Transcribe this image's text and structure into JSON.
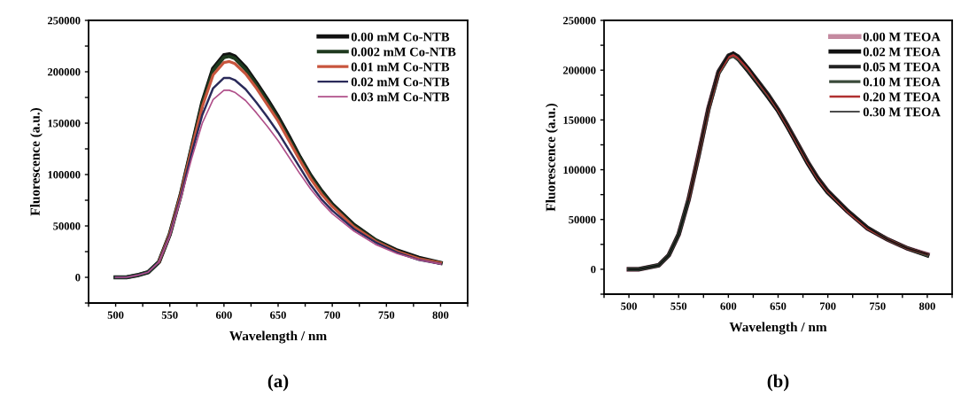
{
  "chart_data": [
    {
      "type": "line",
      "xlabel": "Wavelength / nm",
      "ylabel": "Fluorescence (a.u.)",
      "annotations": [
        "(a)"
      ],
      "x": [
        500,
        510,
        520,
        530,
        540,
        550,
        560,
        570,
        580,
        590,
        600,
        605,
        610,
        620,
        630,
        640,
        650,
        660,
        670,
        680,
        690,
        700,
        720,
        740,
        760,
        780,
        800
      ],
      "series": [
        {
          "name": "0.00 mM Co-NTB",
          "color": "#111111",
          "values": [
            0,
            0,
            2000,
            5000,
            15000,
            42000,
            80000,
            125000,
            170000,
            203000,
            216000,
            217000,
            215000,
            204000,
            189000,
            173000,
            156000,
            137000,
            117000,
            99000,
            84000,
            71000,
            51000,
            36000,
            26000,
            19000,
            14000
          ]
        },
        {
          "name": "0.002 mM Co-NTB",
          "color": "#1f3a1f",
          "values": [
            0,
            0,
            2000,
            5000,
            15000,
            42000,
            80000,
            125000,
            169000,
            201000,
            214000,
            215000,
            213000,
            202000,
            187000,
            171000,
            154000,
            135000,
            116000,
            98000,
            83000,
            70000,
            50000,
            36000,
            25000,
            18000,
            14000
          ]
        },
        {
          "name": "0.01 mM Co-NTB",
          "color": "#c8553d",
          "values": [
            null,
            null,
            null,
            null,
            15000,
            42000,
            80000,
            124000,
            166000,
            197000,
            209000,
            210000,
            208000,
            198000,
            184000,
            168000,
            152000,
            133000,
            114000,
            96000,
            81000,
            69000,
            49000,
            35000,
            25000,
            18000,
            14000
          ]
        },
        {
          "name": "0.02 mM Co-NTB",
          "color": "#2a2a5a",
          "values": [
            0,
            0,
            2000,
            5000,
            15000,
            41000,
            78000,
            120000,
            158000,
            184000,
            194000,
            194000,
            192000,
            183000,
            170000,
            156000,
            141000,
            124000,
            107000,
            90000,
            76000,
            65000,
            47000,
            34000,
            24000,
            17000,
            13000
          ]
        },
        {
          "name": "0.03 mM Co-NTB",
          "color": "#b0508a",
          "values": [
            0,
            0,
            2000,
            5000,
            15000,
            40000,
            76000,
            115000,
            150000,
            173000,
            182000,
            182000,
            180000,
            172000,
            160000,
            147000,
            133000,
            117000,
            101000,
            86000,
            73000,
            62000,
            45000,
            32000,
            23000,
            17000,
            13000
          ]
        }
      ],
      "xlim": [
        475,
        825
      ],
      "ylim": [
        -25000,
        250000
      ],
      "xticks": [
        {
          "value": 475,
          "label": null
        },
        500,
        {
          "value": 525,
          "label": null
        },
        550,
        {
          "value": 575,
          "label": null
        },
        600,
        {
          "value": 625,
          "label": null
        },
        650,
        {
          "value": 675,
          "label": null
        },
        700,
        {
          "value": 725,
          "label": null
        },
        750,
        {
          "value": 775,
          "label": null
        },
        800,
        {
          "value": 825,
          "label": null
        }
      ],
      "yticks": [
        {
          "value": -25000,
          "label": null
        },
        0,
        {
          "value": 25000,
          "label": null
        },
        50000,
        {
          "value": 75000,
          "label": null
        },
        100000,
        {
          "value": 125000,
          "label": null
        },
        150000,
        {
          "value": 175000,
          "label": null
        },
        200000,
        {
          "value": 225000,
          "label": null
        },
        250000
      ],
      "legend": "top right",
      "grid": false,
      "line_style": "solid",
      "marker": "none"
    },
    {
      "type": "line",
      "xlabel": "Wavelength / nm",
      "ylabel": "Fluorescence (a.u.)",
      "annotations": [
        "(b)"
      ],
      "x": [
        500,
        510,
        520,
        530,
        540,
        550,
        560,
        570,
        580,
        590,
        600,
        605,
        610,
        620,
        630,
        640,
        650,
        660,
        670,
        680,
        690,
        700,
        720,
        740,
        760,
        780,
        800
      ],
      "series": [
        {
          "name": "0.00 M TEOA",
          "color": "#c48aa0",
          "values": [
            0,
            0,
            2000,
            4000,
            14000,
            35000,
            70000,
            115000,
            162000,
            198000,
            214000,
            216000,
            212000,
            200000,
            187000,
            174000,
            160000,
            143000,
            125000,
            107000,
            91000,
            78000,
            58000,
            41000,
            30000,
            21000,
            15000
          ]
        },
        {
          "name": "0.02 M TEOA",
          "color": "#111111",
          "values": [
            0,
            0,
            2000,
            4000,
            14000,
            35000,
            70000,
            114000,
            161000,
            197000,
            213000,
            215000,
            211000,
            199000,
            186000,
            173000,
            159000,
            142000,
            124000,
            106000,
            90000,
            77000,
            58000,
            41000,
            30000,
            21000,
            14000
          ]
        },
        {
          "name": "0.05 M TEOA",
          "color": "#222222",
          "values": [
            0,
            0,
            2000,
            4000,
            14000,
            35000,
            70000,
            115000,
            162000,
            199000,
            215000,
            217000,
            214000,
            202000,
            189000,
            176000,
            161000,
            144000,
            126000,
            108000,
            92000,
            79000,
            59000,
            42000,
            30000,
            21000,
            15000
          ]
        },
        {
          "name": "0.10 M TEOA",
          "color": "#3a4a3a",
          "values": [
            0,
            0,
            2000,
            4000,
            14000,
            35000,
            70000,
            114000,
            160000,
            196000,
            212000,
            214000,
            211000,
            200000,
            187000,
            174000,
            160000,
            143000,
            125000,
            107000,
            91000,
            78000,
            58000,
            41000,
            30000,
            21000,
            14000
          ]
        },
        {
          "name": "0.20 M TEOA",
          "color": "#b03030",
          "values": [
            null,
            null,
            null,
            null,
            null,
            null,
            70000,
            115000,
            161000,
            197000,
            213000,
            215000,
            212000,
            201000,
            188000,
            175000,
            160000,
            143000,
            125000,
            107000,
            91000,
            78000,
            58000,
            41000,
            30000,
            21000,
            15000
          ]
        },
        {
          "name": "0.30 M TEOA",
          "color": "#111111",
          "values": [
            0,
            0,
            2000,
            4000,
            14000,
            35000,
            70000,
            115000,
            162000,
            198000,
            215000,
            218000,
            214000,
            203000,
            189000,
            176000,
            161000,
            144000,
            126000,
            108000,
            92000,
            79000,
            59000,
            42000,
            30000,
            21000,
            15000
          ]
        }
      ],
      "xlim": [
        475,
        825
      ],
      "ylim": [
        -25000,
        250000
      ],
      "xticks": [
        {
          "value": 475,
          "label": null
        },
        500,
        {
          "value": 525,
          "label": null
        },
        550,
        {
          "value": 575,
          "label": null
        },
        600,
        {
          "value": 625,
          "label": null
        },
        650,
        {
          "value": 675,
          "label": null
        },
        700,
        {
          "value": 725,
          "label": null
        },
        750,
        {
          "value": 775,
          "label": null
        },
        800,
        {
          "value": 825,
          "label": null
        }
      ],
      "yticks": [
        {
          "value": -25000,
          "label": null
        },
        0,
        {
          "value": 25000,
          "label": null
        },
        50000,
        {
          "value": 75000,
          "label": null
        },
        100000,
        {
          "value": 125000,
          "label": null
        },
        150000,
        {
          "value": 175000,
          "label": null
        },
        200000,
        {
          "value": 225000,
          "label": null
        },
        250000
      ],
      "legend": "top right",
      "grid": false,
      "line_style": "solid",
      "marker": "none"
    }
  ]
}
